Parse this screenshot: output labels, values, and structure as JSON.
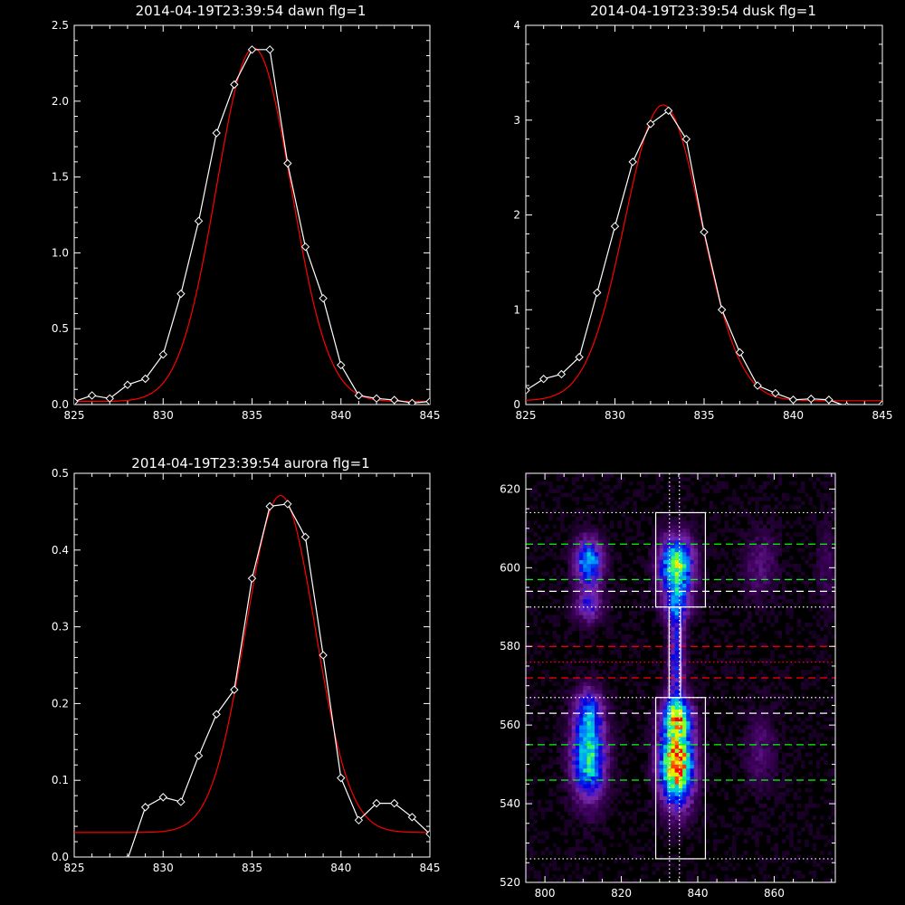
{
  "chart_data": [
    {
      "type": "line",
      "title": "2014-04-19T23:39:54 dawn flg=1",
      "xlim": [
        825,
        845
      ],
      "ylim": [
        0,
        2.5
      ],
      "xticks": [
        "825",
        "830",
        "835",
        "840",
        "845"
      ],
      "yticks": [
        "0.0",
        "0.5",
        "1.0",
        "1.5",
        "2.0",
        "2.5"
      ],
      "series": [
        {
          "kind": "observed",
          "color": "#ffffff",
          "marker": "diamond",
          "x": [
            825,
            826,
            827,
            828,
            829,
            830,
            831,
            832,
            833,
            834,
            835,
            836,
            837,
            838,
            839,
            840,
            841,
            842,
            843,
            844,
            845
          ],
          "y": [
            0.02,
            0.06,
            0.04,
            0.13,
            0.17,
            0.33,
            0.73,
            1.21,
            1.79,
            2.11,
            2.34,
            2.34,
            1.59,
            1.04,
            0.7,
            0.26,
            0.06,
            0.04,
            0.03,
            0.01,
            0.02
          ]
        },
        {
          "kind": "fit",
          "color": "#ff0000",
          "model": "gaussian",
          "amplitude": 2.33,
          "center": 835.1,
          "sigma": 2.1,
          "offset": 0.02
        }
      ]
    },
    {
      "type": "line",
      "title": "2014-04-19T23:39:54 dusk flg=1",
      "xlim": [
        825,
        845
      ],
      "ylim": [
        0,
        4
      ],
      "xticks": [
        "825",
        "830",
        "835",
        "840",
        "845"
      ],
      "yticks": [
        "0",
        "1",
        "2",
        "3",
        "4"
      ],
      "series": [
        {
          "kind": "observed",
          "color": "#ffffff",
          "marker": "diamond",
          "x": [
            825,
            826,
            827,
            828,
            829,
            830,
            831,
            832,
            833,
            834,
            835,
            836,
            837,
            838,
            839,
            840,
            841,
            842,
            843,
            844,
            845
          ],
          "y": [
            0.15,
            0.27,
            0.32,
            0.5,
            1.18,
            1.88,
            2.56,
            2.96,
            3.1,
            2.8,
            1.82,
            1.0,
            0.55,
            0.2,
            0.12,
            0.05,
            0.06,
            0.05,
            -0.02,
            -0.03,
            0.0
          ]
        },
        {
          "kind": "fit",
          "color": "#ff0000",
          "model": "gaussian",
          "amplitude": 3.12,
          "center": 832.7,
          "sigma": 2.15,
          "offset": 0.04
        }
      ]
    },
    {
      "type": "line",
      "title": "2014-04-19T23:39:54 aurora flg=1",
      "xlim": [
        825,
        845
      ],
      "ylim": [
        0,
        0.5
      ],
      "xticks": [
        "825",
        "830",
        "835",
        "840",
        "845"
      ],
      "yticks": [
        "0.0",
        "0.1",
        "0.2",
        "0.3",
        "0.4",
        "0.5"
      ],
      "series": [
        {
          "kind": "observed",
          "color": "#ffffff",
          "marker": "diamond",
          "x": [
            825,
            826,
            827,
            828,
            829,
            830,
            831,
            832,
            833,
            834,
            835,
            836,
            837,
            838,
            839,
            840,
            841,
            842,
            843,
            844,
            845
          ],
          "y": [
            -0.015,
            -0.005,
            -0.01,
            -0.003,
            0.065,
            0.078,
            0.072,
            0.132,
            0.186,
            0.218,
            0.363,
            0.457,
            0.46,
            0.417,
            0.263,
            0.103,
            0.048,
            0.07,
            0.07,
            0.052,
            0.03
          ]
        },
        {
          "kind": "fit",
          "color": "#ff0000",
          "model": "gaussian",
          "amplitude": 0.439,
          "center": 836.6,
          "sigma": 1.95,
          "offset": 0.032
        }
      ]
    },
    {
      "type": "heatmap",
      "title": "",
      "xlim": [
        795,
        876
      ],
      "ylim": [
        520,
        624
      ],
      "xticks": [
        "800",
        "820",
        "840",
        "860"
      ],
      "yticks": [
        "520",
        "540",
        "560",
        "580",
        "600",
        "620"
      ],
      "colormap": "rainbow",
      "blobs": [
        {
          "x": 811,
          "y": 601,
          "sx": 2.5,
          "sy": 4,
          "amp": 0.55
        },
        {
          "x": 811,
          "y": 590,
          "sx": 2.5,
          "sy": 3,
          "amp": 0.3
        },
        {
          "x": 834,
          "y": 600,
          "sx": 3,
          "sy": 5,
          "amp": 0.72
        },
        {
          "x": 834,
          "y": 590,
          "sx": 2.5,
          "sy": 3,
          "amp": 0.3
        },
        {
          "x": 811,
          "y": 551,
          "sx": 3,
          "sy": 7,
          "amp": 0.62
        },
        {
          "x": 811,
          "y": 563,
          "sx": 2.5,
          "sy": 4,
          "amp": 0.35
        },
        {
          "x": 834,
          "y": 550,
          "sx": 3,
          "sy": 7,
          "amp": 1.0
        },
        {
          "x": 834,
          "y": 562,
          "sx": 2.5,
          "sy": 3,
          "amp": 0.6
        },
        {
          "x": 834,
          "y": 577,
          "sx": 1.5,
          "sy": 9,
          "amp": 0.35
        },
        {
          "x": 856,
          "y": 600,
          "sx": 3,
          "sy": 6,
          "amp": 0.14
        },
        {
          "x": 856,
          "y": 553,
          "sx": 3,
          "sy": 7,
          "amp": 0.12
        },
        {
          "x": 873,
          "y": 600,
          "sx": 2,
          "sy": 8,
          "amp": 0.08
        }
      ],
      "boxes": [
        {
          "x": [
            829,
            842
          ],
          "y": [
            590,
            614
          ]
        },
        {
          "x": [
            829,
            842
          ],
          "y": [
            526,
            567
          ]
        },
        {
          "x": [
            832.5,
            835.5
          ],
          "y": [
            567,
            590
          ]
        }
      ],
      "vlines": [
        {
          "x": 832.6,
          "color": "#ffffff",
          "style": "dotted"
        },
        {
          "x": 835.2,
          "color": "#ffffff",
          "style": "dotted"
        }
      ],
      "hlines": [
        {
          "y": 614,
          "color": "#ffffff",
          "style": "dotted"
        },
        {
          "y": 606,
          "color": "#00ff00",
          "style": "dashed"
        },
        {
          "y": 597,
          "color": "#00ff00",
          "style": "dashed"
        },
        {
          "y": 594,
          "color": "#ffffff",
          "style": "dashed"
        },
        {
          "y": 590,
          "color": "#ffffff",
          "style": "dotted"
        },
        {
          "y": 580,
          "color": "#ff0000",
          "style": "dashed"
        },
        {
          "y": 576,
          "color": "#ff0000",
          "style": "dotted"
        },
        {
          "y": 572,
          "color": "#ff0000",
          "style": "dashed"
        },
        {
          "y": 567,
          "color": "#ffffff",
          "style": "dotted"
        },
        {
          "y": 563,
          "color": "#ffffff",
          "style": "dashed"
        },
        {
          "y": 555,
          "color": "#00ff00",
          "style": "dashed"
        },
        {
          "y": 546,
          "color": "#00ff00",
          "style": "dashed"
        },
        {
          "y": 526,
          "color": "#ffffff",
          "style": "dotted"
        }
      ]
    }
  ]
}
